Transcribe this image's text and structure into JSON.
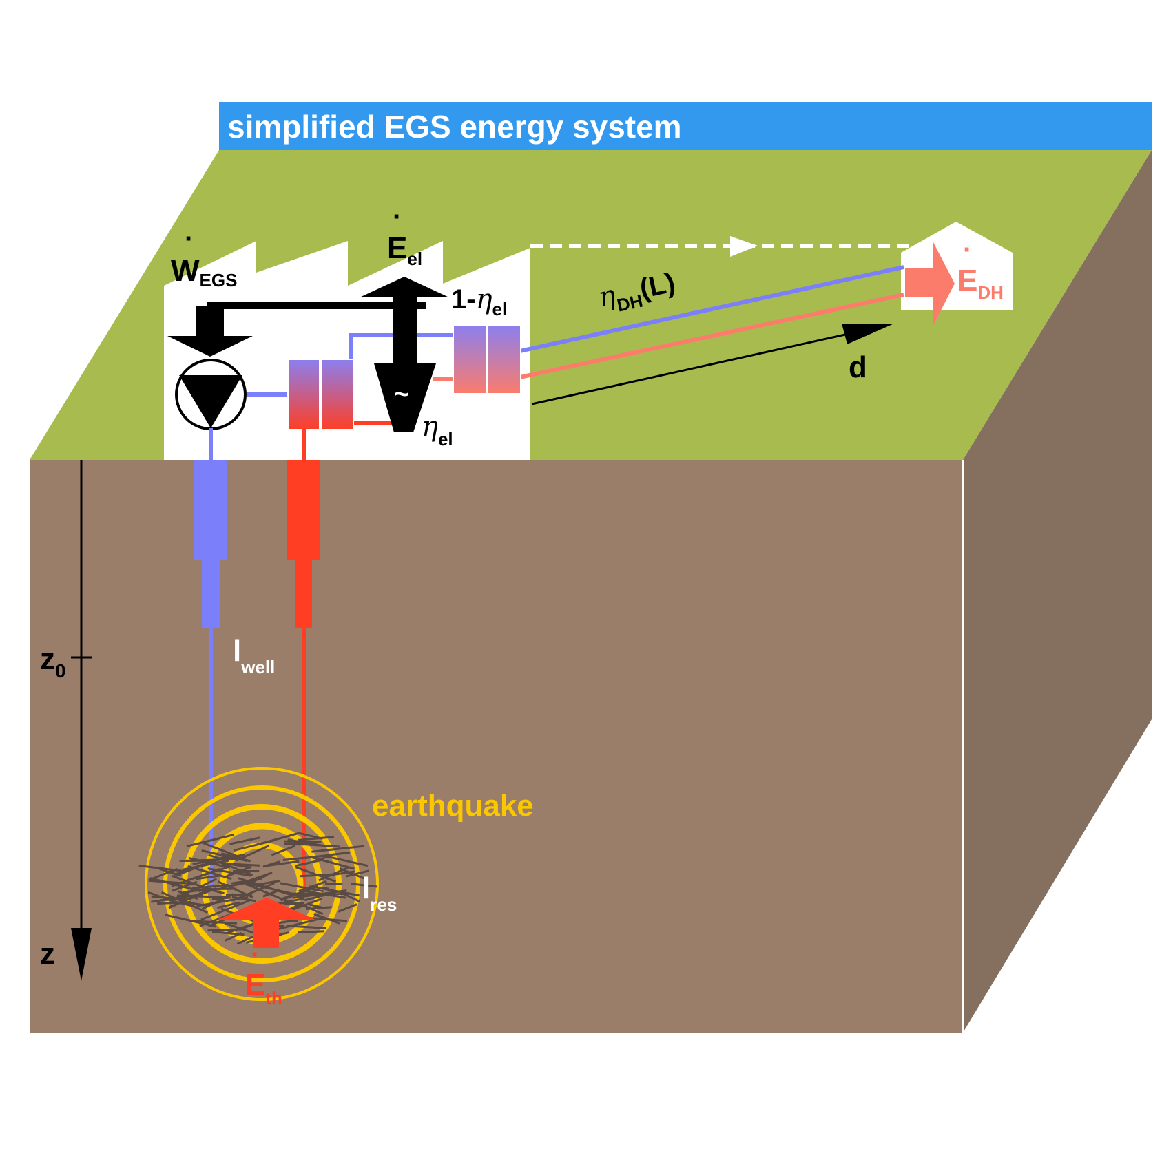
{
  "title": "simplified EGS energy system",
  "labels": {
    "w_egs_main": "W",
    "w_egs_sub": "EGS",
    "e_el_main": "E",
    "e_el_sub": "el",
    "one_minus": "1-",
    "eta_symbol": "η",
    "eta_el_sub": "el",
    "eta_dh_sub": "DH",
    "eta_dh_arg": "(L)",
    "d": "d",
    "e_dh_main": "E",
    "e_dh_sub": "DH",
    "z0_main": "z",
    "z0_sub": "0",
    "z": "z",
    "l_well_main": "l",
    "l_well_sub": "well",
    "l_res_main": "l",
    "l_res_sub": "res",
    "earthquake": "earthquake",
    "e_th_main": "E",
    "e_th_sub": "th",
    "generator_symbol": "~",
    "dot": "·"
  },
  "colors": {
    "title_bar": "#3399ee",
    "surface": "#a8bb4f",
    "ground_front": "#9b7e6a",
    "ground_side": "#85705f",
    "cold_pipe": "#7b7ffa",
    "hot_pipe": "#ff3e24",
    "district_heat": "#fb7c6b",
    "earthquake": "#fbc800",
    "fractures": "#5a4a44"
  }
}
